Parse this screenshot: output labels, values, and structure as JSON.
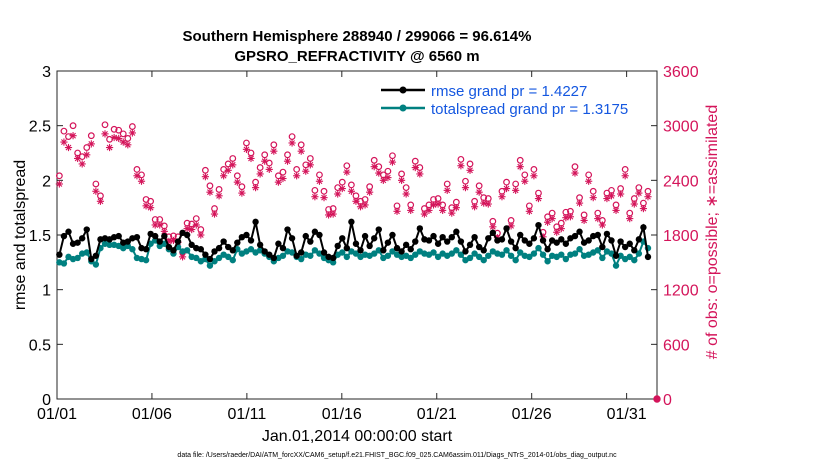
{
  "chart_data": {
    "type": "line",
    "title": "Southern Hemisphere 288940 / 299066 = 96.614%",
    "subtitle": "GPSRO_REFRACTIVITY @ 6560 m",
    "xlabel": "Jan.01,2014 00:00:00 start",
    "ylabel": "rmse and totalspread",
    "ylabel_right": "# of obs: o=possible; ∗=assimilated",
    "footnote": "data file: /Users/raeder/DAI/ATM_forcXX/CAM6_setup/f.e21.FHIST_BGC.f09_025.CAM6assim.011/Diags_NTrS_2014-01/obs_diag_output.nc",
    "xlim": [
      0,
      31.6
    ],
    "ylim": [
      0,
      3
    ],
    "ylim_right": [
      0,
      3600
    ],
    "x_ticks": [
      0,
      5,
      10,
      15,
      20,
      25,
      30
    ],
    "x_tick_labels": [
      "01/01",
      "01/06",
      "01/11",
      "01/16",
      "01/21",
      "01/26",
      "01/31"
    ],
    "y_ticks": [
      0,
      0.5,
      1,
      1.5,
      2,
      2.5,
      3
    ],
    "y_tick_labels": [
      "0",
      "0.5",
      "1",
      "1.5",
      "2",
      "2.5",
      "3"
    ],
    "y_right_ticks": [
      0,
      600,
      1200,
      1800,
      2400,
      3000,
      3600
    ],
    "y_right_tick_labels": [
      "0",
      "600",
      "1200",
      "1800",
      "2400",
      "3000",
      "3600"
    ],
    "legend_position": "top-right",
    "grid": false,
    "colors": {
      "rmse": "#000000",
      "totalspread": "#008080",
      "obs_count": "#d4145a",
      "legend_text": "#1457e0"
    },
    "series": [
      {
        "name": "rmse grand pr = 1.4227",
        "axis": "left",
        "values": [
          1.32,
          1.49,
          1.53,
          1.42,
          1.43,
          1.47,
          1.55,
          1.28,
          1.31,
          1.46,
          1.47,
          1.46,
          1.48,
          1.49,
          1.43,
          1.44,
          1.47,
          1.48,
          1.38,
          1.37,
          1.51,
          1.49,
          1.44,
          1.49,
          1.39,
          1.36,
          1.44,
          1.52,
          1.5,
          1.41,
          1.38,
          1.37,
          1.32,
          1.28,
          1.35,
          1.38,
          1.44,
          1.39,
          1.36,
          1.43,
          1.48,
          1.5,
          1.45,
          1.62,
          1.41,
          1.35,
          1.32,
          1.29,
          1.42,
          1.38,
          1.55,
          1.47,
          1.31,
          1.34,
          1.49,
          1.44,
          1.53,
          1.5,
          1.34,
          1.3,
          1.29,
          1.4,
          1.47,
          1.38,
          1.62,
          1.42,
          1.36,
          1.49,
          1.4,
          1.47,
          1.55,
          1.36,
          1.43,
          1.5,
          1.38,
          1.35,
          1.41,
          1.37,
          1.44,
          1.56,
          1.46,
          1.45,
          1.49,
          1.42,
          1.48,
          1.44,
          1.48,
          1.53,
          1.44,
          1.35,
          1.41,
          1.48,
          1.39,
          1.36,
          1.47,
          1.52,
          1.45,
          1.46,
          1.56,
          1.44,
          1.38,
          1.5,
          1.45,
          1.42,
          1.47,
          1.59,
          1.45,
          1.37,
          1.45,
          1.43,
          1.46,
          1.42,
          1.47,
          1.49,
          1.53,
          1.43,
          1.45,
          1.49,
          1.5,
          1.39,
          1.51,
          1.45,
          1.31,
          1.44,
          1.39,
          1.42,
          1.36,
          1.46,
          1.57,
          1.3
        ]
      },
      {
        "name": "totalspread grand pr = 1.3175",
        "axis": "left",
        "values": [
          1.25,
          1.24,
          1.3,
          1.28,
          1.29,
          1.33,
          1.34,
          1.26,
          1.23,
          1.38,
          1.42,
          1.41,
          1.41,
          1.4,
          1.38,
          1.4,
          1.37,
          1.29,
          1.28,
          1.27,
          1.42,
          1.45,
          1.4,
          1.42,
          1.37,
          1.33,
          1.39,
          1.35,
          1.36,
          1.3,
          1.29,
          1.26,
          1.28,
          1.22,
          1.26,
          1.29,
          1.32,
          1.3,
          1.27,
          1.37,
          1.33,
          1.35,
          1.37,
          1.34,
          1.36,
          1.33,
          1.3,
          1.26,
          1.29,
          1.31,
          1.35,
          1.34,
          1.3,
          1.28,
          1.32,
          1.31,
          1.36,
          1.33,
          1.29,
          1.27,
          1.25,
          1.32,
          1.34,
          1.3,
          1.35,
          1.33,
          1.3,
          1.32,
          1.31,
          1.33,
          1.36,
          1.29,
          1.31,
          1.35,
          1.32,
          1.3,
          1.31,
          1.29,
          1.32,
          1.35,
          1.33,
          1.32,
          1.34,
          1.3,
          1.33,
          1.31,
          1.33,
          1.36,
          1.32,
          1.27,
          1.29,
          1.33,
          1.3,
          1.27,
          1.31,
          1.35,
          1.33,
          1.32,
          1.36,
          1.31,
          1.27,
          1.34,
          1.31,
          1.3,
          1.33,
          1.38,
          1.32,
          1.26,
          1.31,
          1.3,
          1.32,
          1.28,
          1.32,
          1.33,
          1.37,
          1.31,
          1.32,
          1.34,
          1.36,
          1.29,
          1.35,
          1.33,
          1.22,
          1.31,
          1.28,
          1.3,
          1.27,
          1.33,
          1.44,
          1.38
        ]
      },
      {
        "name": "possible",
        "axis": "right",
        "marker": "o",
        "values": [
          2450,
          2940,
          2880,
          3000,
          2700,
          2660,
          2760,
          2890,
          2360,
          2230,
          3010,
          2850,
          2960,
          2950,
          2910,
          2860,
          2990,
          2520,
          2460,
          2190,
          2170,
          1970,
          1970,
          1900,
          1780,
          1790,
          1780,
          1610,
          1930,
          1920,
          1980,
          1860,
          2510,
          2340,
          2090,
          2300,
          2520,
          2580,
          2640,
          2450,
          2330,
          2810,
          2700,
          2380,
          2540,
          2680,
          2590,
          2790,
          2450,
          2490,
          2680,
          2880,
          2520,
          2790,
          2570,
          2640,
          2290,
          2460,
          2280,
          2080,
          2090,
          2320,
          2380,
          2560,
          2350,
          2230,
          2170,
          2190,
          2330,
          2620,
          2550,
          2460,
          2500,
          2670,
          2120,
          2470,
          2320,
          2130,
          2610,
          2540,
          2090,
          2130,
          2190,
          2200,
          2130,
          2360,
          2100,
          2160,
          2630,
          2390,
          2580,
          2170,
          2340,
          2210,
          2200,
          1950,
          1820,
          2280,
          2380,
          1960,
          2360,
          2620,
          2460,
          2120,
          2520,
          2260,
          1830,
          2000,
          2040,
          1890,
          1930,
          2050,
          2060,
          2550,
          2210,
          2020,
          2460,
          2280,
          2040,
          1960,
          2260,
          2290,
          2130,
          2310,
          2520,
          2040,
          2200,
          2320,
          2150,
          2280
        ]
      },
      {
        "name": "assimilated",
        "axis": "right",
        "marker": "*",
        "values": [
          2360,
          2820,
          2760,
          2890,
          2640,
          2580,
          2680,
          2800,
          2280,
          2170,
          2910,
          2760,
          2870,
          2860,
          2820,
          2790,
          2920,
          2450,
          2390,
          2120,
          2100,
          1910,
          1910,
          1840,
          1730,
          1740,
          1720,
          1560,
          1870,
          1860,
          1910,
          1800,
          2440,
          2270,
          2030,
          2230,
          2450,
          2510,
          2570,
          2380,
          2260,
          2740,
          2640,
          2320,
          2470,
          2610,
          2520,
          2720,
          2380,
          2420,
          2610,
          2810,
          2450,
          2720,
          2500,
          2570,
          2220,
          2390,
          2210,
          2020,
          2030,
          2250,
          2310,
          2490,
          2280,
          2170,
          2110,
          2130,
          2270,
          2550,
          2480,
          2400,
          2430,
          2600,
          2060,
          2400,
          2250,
          2070,
          2540,
          2470,
          2030,
          2070,
          2130,
          2140,
          2070,
          2290,
          2040,
          2100,
          2560,
          2320,
          2510,
          2110,
          2270,
          2150,
          2140,
          1890,
          1770,
          2220,
          2310,
          1900,
          2290,
          2550,
          2390,
          2060,
          2450,
          2200,
          1780,
          1940,
          1980,
          1830,
          1870,
          1990,
          2000,
          2480,
          2150,
          1960,
          2390,
          2210,
          1980,
          1910,
          2200,
          2230,
          2070,
          2250,
          2450,
          1980,
          2140,
          2260,
          2090,
          2220
        ]
      }
    ]
  }
}
